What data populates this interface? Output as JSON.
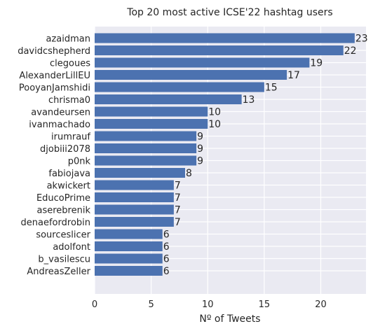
{
  "chart_data": {
    "type": "bar",
    "orientation": "horizontal",
    "title": "Top 20 most active ICSE'22 hashtag users",
    "xlabel": "Nº of Tweets",
    "ylabel": "",
    "xlim": [
      0,
      24
    ],
    "xticks": [
      0,
      5,
      10,
      15,
      20
    ],
    "grid": true,
    "bar_color": "#4c72b0",
    "background_color": "#eaeaf2",
    "categories": [
      "azaidman",
      "davidcshepherd",
      "clegoues",
      "AlexanderLillEU",
      "PooyanJamshidi",
      "chrisma0",
      "avandeursen",
      "ivanmachado",
      "irumrauf",
      "djobiii2078",
      "p0nk",
      "fabiojava",
      "akwickert",
      "EducoPrime",
      "aserebrenik",
      "denaefordrobin",
      "sourceslicer",
      "adolfont",
      "b_vasilescu",
      "AndreasZeller"
    ],
    "values": [
      23,
      22,
      19,
      17,
      15,
      13,
      10,
      10,
      9,
      9,
      9,
      8,
      7,
      7,
      7,
      7,
      6,
      6,
      6,
      6
    ]
  }
}
